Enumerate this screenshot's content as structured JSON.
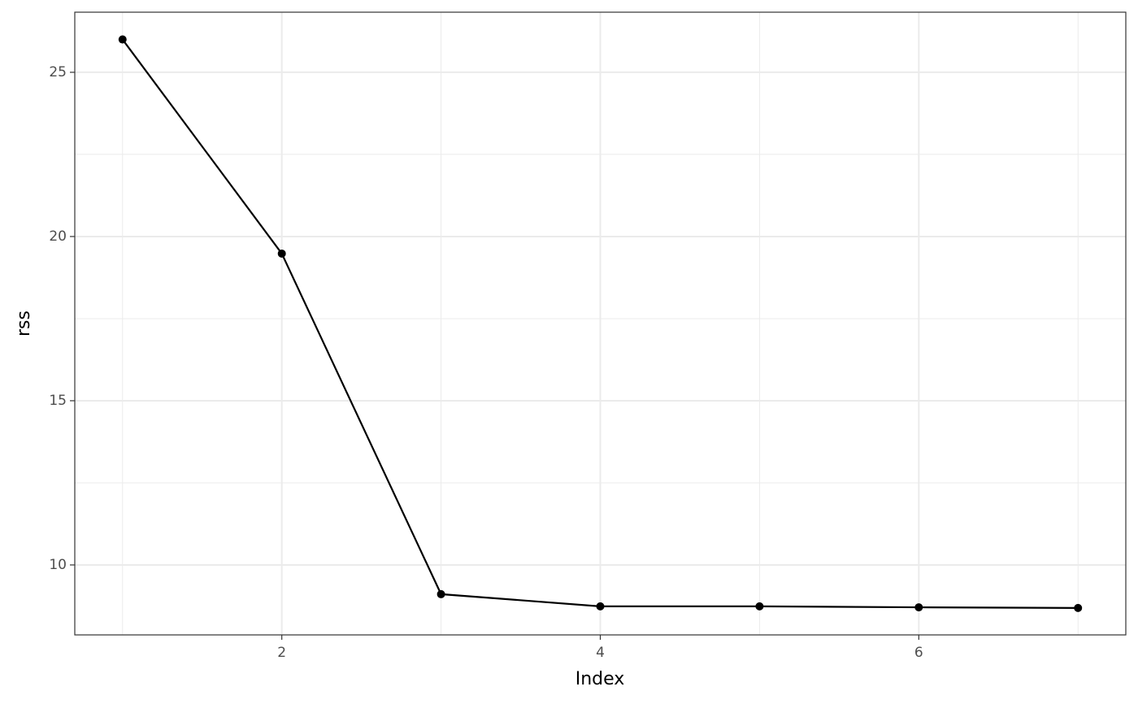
{
  "chart_data": {
    "type": "line",
    "x_label": "Index",
    "y_label": "rss",
    "x": [
      1,
      2,
      3,
      4,
      5,
      6,
      7
    ],
    "series": [
      {
        "color": "#000000",
        "values": [
          26.0,
          19.48,
          9.11,
          8.74,
          8.74,
          8.71,
          8.69
        ]
      }
    ],
    "xlim": [
      0.7,
      7.3
    ],
    "ylim": [
      7.87,
      26.83
    ],
    "xticks": [
      2,
      4,
      6
    ],
    "yticks": [
      10,
      15,
      20,
      25
    ],
    "xminor": [
      1,
      3,
      5,
      7
    ],
    "yminor": [
      12.5,
      17.5,
      22.5
    ],
    "grid": true,
    "markers": true
  }
}
